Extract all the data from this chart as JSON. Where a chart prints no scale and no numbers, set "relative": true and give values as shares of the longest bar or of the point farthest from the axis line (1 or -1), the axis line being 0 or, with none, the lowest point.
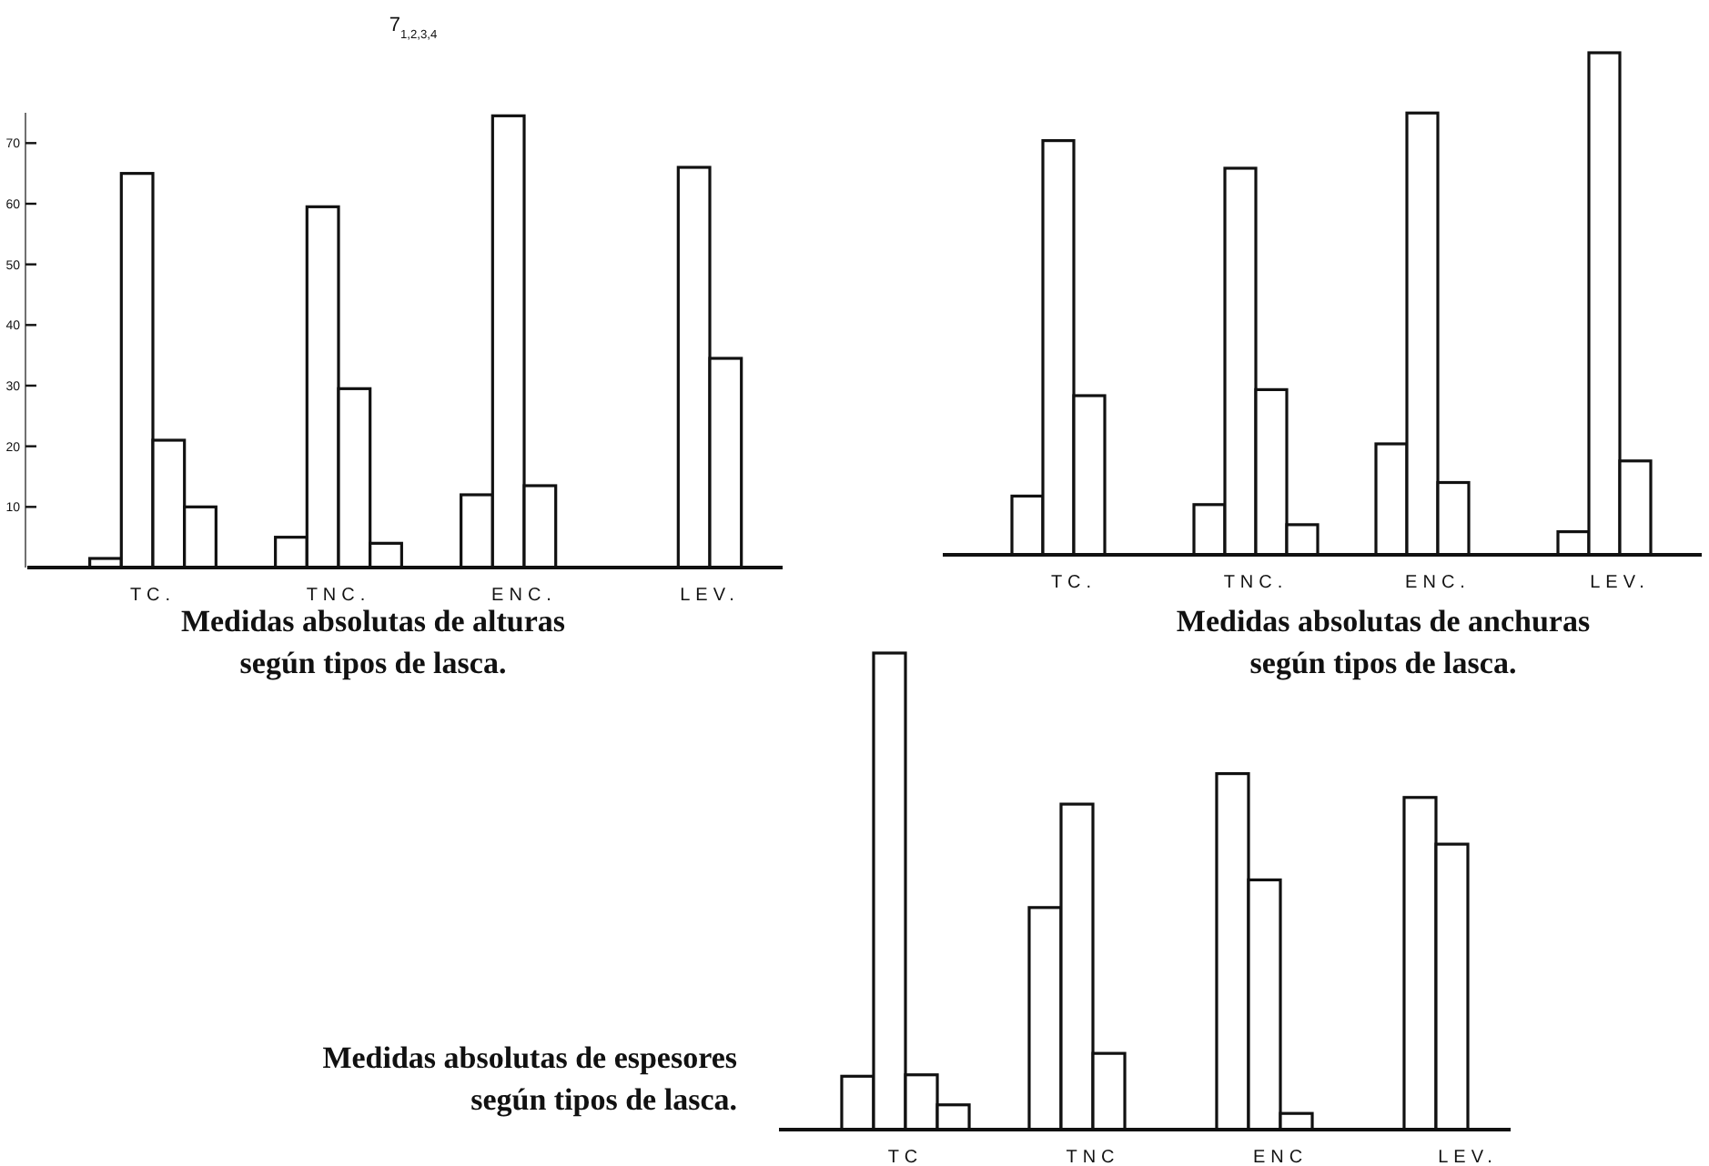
{
  "chart_data": [
    {
      "type": "bar",
      "title": "Medidas absolutas de alturas según tipos de lasca.",
      "annotations": [
        "7$_{1,2,3,4}$"
      ],
      "categories": [
        "TC.",
        "TNC.",
        "ENC.",
        "LEV."
      ],
      "series": [
        {
          "color": "#ffffff",
          "values": [
            1.5,
            5,
            12,
            null
          ]
        },
        {
          "color": "#ffffff",
          "values": [
            65,
            59.5,
            74.5,
            66
          ]
        },
        {
          "color": "#ffffff",
          "values": [
            21,
            29.5,
            13.5,
            34.5
          ]
        },
        {
          "color": "#ffffff",
          "values": [
            10,
            4,
            null,
            null
          ]
        }
      ],
      "ylim": [
        0,
        75
      ],
      "yticks": [
        10,
        20,
        30,
        40,
        50,
        60,
        70
      ],
      "grid": false
    },
    {
      "type": "bar",
      "title": "Medidas absolutas de anchuras según tipos de lasca.",
      "categories": [
        "TC.",
        "TNC.",
        "ENC.",
        "LEV."
      ],
      "relative": true,
      "series": [
        {
          "color": "#ffffff",
          "values": [
            0.117,
            0.1,
            0.221,
            0.046
          ]
        },
        {
          "color": "#ffffff",
          "values": [
            0.825,
            0.77,
            0.88,
            1
          ]
        },
        {
          "color": "#ffffff",
          "values": [
            0.317,
            0.329,
            0.144,
            0.187
          ]
        },
        {
          "color": "#ffffff",
          "values": [
            null,
            0.06,
            null,
            null
          ]
        }
      ],
      "grid": false
    },
    {
      "type": "bar",
      "title": "Medidas absolutas de espesores según tipos de lasca.",
      "categories": [
        "TC",
        "TNC",
        "ENC",
        "LEV."
      ],
      "relative": true,
      "series": [
        {
          "color": "#ffffff",
          "values": [
            0.112,
            0.466,
            0.747,
            0.697
          ]
        },
        {
          "color": "#ffffff",
          "values": [
            1,
            0.683,
            0.524,
            0.599
          ]
        },
        {
          "color": "#ffffff",
          "values": [
            0.115,
            0.16,
            0.034,
            null
          ]
        },
        {
          "color": "#ffffff",
          "values": [
            0.052,
            null,
            null,
            null
          ]
        }
      ],
      "grid": false
    }
  ]
}
